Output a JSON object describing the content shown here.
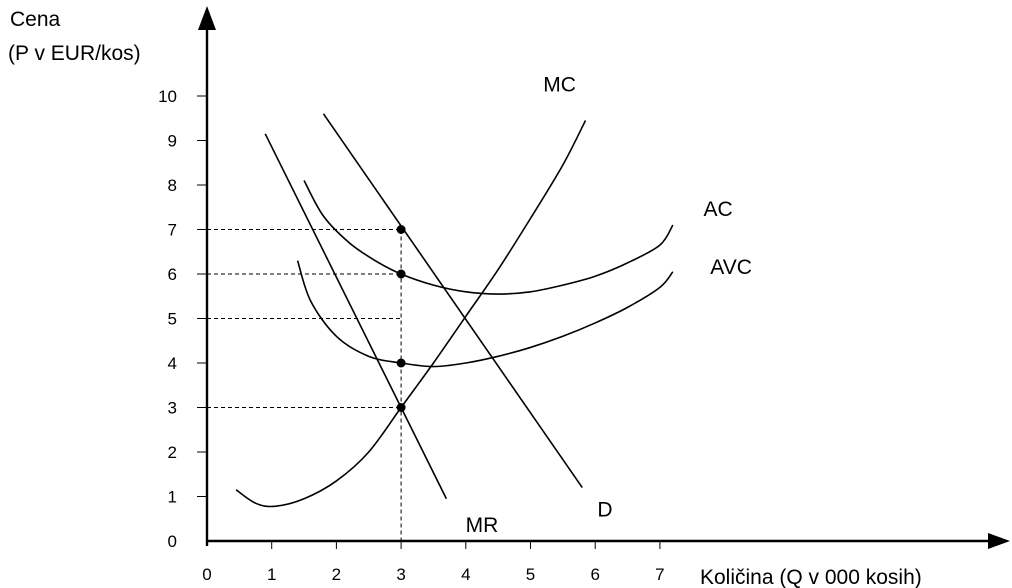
{
  "chart_data": {
    "type": "line",
    "title": "",
    "ylabel_lines": [
      "Cena",
      "(P v EUR/kos)"
    ],
    "xlabel": "Količina (Q v 000 kosih)",
    "x_ticks": [
      "0",
      "1",
      "2",
      "3",
      "4",
      "5",
      "6",
      "7"
    ],
    "y_ticks": [
      "0",
      "1",
      "2",
      "3",
      "4",
      "5",
      "6",
      "7",
      "8",
      "9",
      "10"
    ],
    "xlim": [
      0,
      7
    ],
    "ylim": [
      0,
      10
    ],
    "grid": false,
    "legend": "none",
    "series": [
      {
        "name": "MC",
        "x": [
          0.45,
          0.75,
          1.05,
          1.5,
          2.0,
          2.5,
          3.0,
          3.5,
          4.0,
          4.5,
          5.0,
          5.5,
          5.85
        ],
        "y": [
          1.15,
          0.85,
          0.78,
          0.95,
          1.35,
          2.0,
          3.0,
          4.0,
          5.05,
          6.1,
          7.25,
          8.45,
          9.45
        ]
      },
      {
        "name": "AC",
        "x": [
          1.5,
          1.8,
          2.2,
          2.6,
          3.0,
          3.5,
          4.0,
          4.5,
          5.0,
          5.5,
          6.0,
          6.5,
          7.0,
          7.2
        ],
        "y": [
          8.1,
          7.3,
          6.7,
          6.3,
          6.0,
          5.75,
          5.6,
          5.55,
          5.6,
          5.75,
          5.95,
          6.25,
          6.65,
          7.1
        ]
      },
      {
        "name": "AVC",
        "x": [
          1.4,
          1.6,
          2.0,
          2.5,
          3.0,
          3.5,
          4.0,
          4.5,
          5.0,
          5.5,
          6.0,
          6.5,
          7.0,
          7.2
        ],
        "y": [
          6.3,
          5.4,
          4.6,
          4.15,
          4.0,
          3.92,
          4.0,
          4.15,
          4.35,
          4.6,
          4.9,
          5.25,
          5.7,
          6.05
        ]
      },
      {
        "name": "D",
        "x": [
          1.8,
          5.8
        ],
        "y": [
          9.6,
          1.2
        ]
      },
      {
        "name": "MR",
        "x": [
          0.9,
          3.7
        ],
        "y": [
          9.15,
          0.95
        ]
      }
    ],
    "points": [
      {
        "x": 3,
        "y": 7
      },
      {
        "x": 3,
        "y": 6
      },
      {
        "x": 3,
        "y": 4
      },
      {
        "x": 3,
        "y": 3
      }
    ],
    "guides": {
      "vertical_x": 3,
      "horizontal_y": [
        7,
        6,
        5,
        3
      ]
    },
    "curve_labels": [
      {
        "text": "MC",
        "x": 5.45,
        "y": 10.1
      },
      {
        "text": "AC",
        "x": 7.9,
        "y": 7.3
      },
      {
        "text": "AVC",
        "x": 8.1,
        "y": 6.0
      },
      {
        "text": "D",
        "x": 6.15,
        "y": 0.55
      },
      {
        "text": "MR",
        "x": 4.25,
        "y": 0.2
      }
    ]
  }
}
